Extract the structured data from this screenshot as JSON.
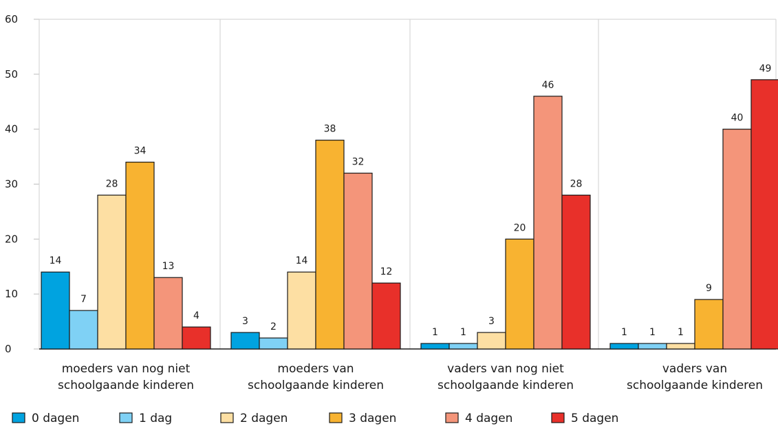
{
  "chart_data": {
    "type": "bar",
    "title": "",
    "xlabel": "",
    "ylabel": "",
    "ylim": [
      0,
      60
    ],
    "yticks": [
      0,
      10,
      20,
      30,
      40,
      50,
      60
    ],
    "grid": "vertical separators between groups",
    "legend_position": "bottom",
    "categories": [
      [
        "moeders van nog niet",
        "schoolgaande kinderen"
      ],
      [
        "moeders van",
        "schoolgaande kinderen"
      ],
      [
        "vaders van nog niet",
        "schoolgaande kinderen"
      ],
      [
        "vaders van",
        "schoolgaande kinderen"
      ]
    ],
    "series": [
      {
        "name": "0 dagen",
        "color": "#00a3e0",
        "values": [
          14,
          3,
          1,
          1
        ]
      },
      {
        "name": "1 dag",
        "color": "#7fd1f5",
        "values": [
          7,
          2,
          1,
          1
        ]
      },
      {
        "name": "2 dagen",
        "color": "#fddfa3",
        "values": [
          28,
          14,
          3,
          1
        ]
      },
      {
        "name": "3 dagen",
        "color": "#f8b331",
        "values": [
          34,
          38,
          20,
          9
        ]
      },
      {
        "name": "4 dagen",
        "color": "#f4957a",
        "values": [
          13,
          32,
          46,
          40
        ]
      },
      {
        "name": "5 dagen",
        "color": "#e8302a",
        "values": [
          4,
          12,
          28,
          49
        ]
      }
    ]
  }
}
